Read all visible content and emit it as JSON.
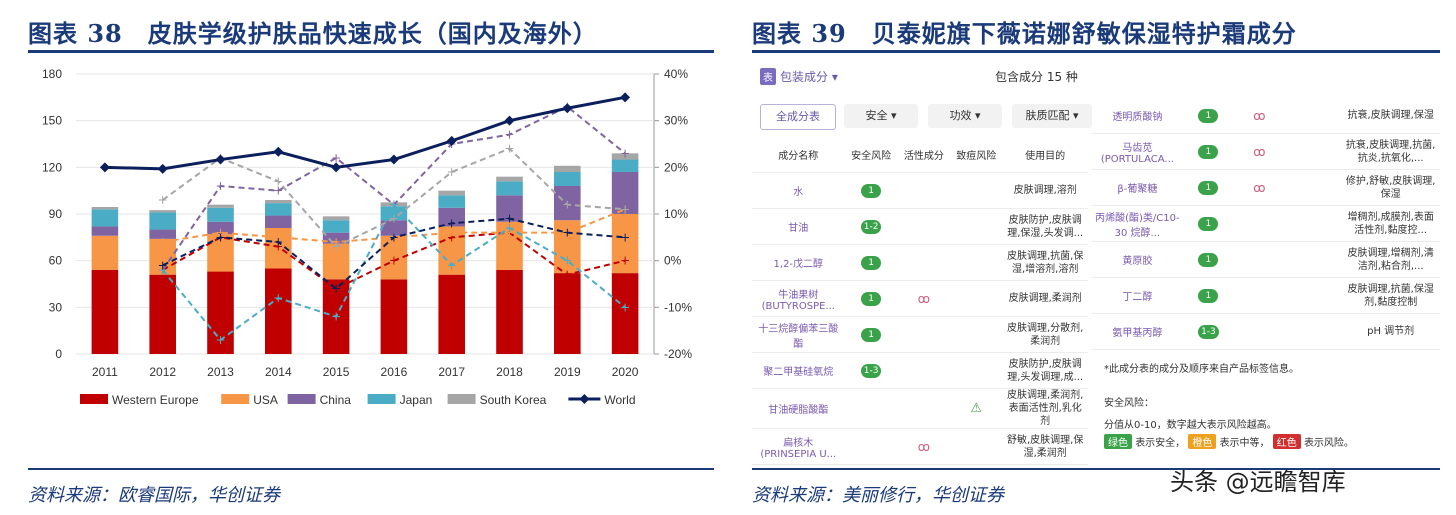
{
  "left": {
    "title": "图表 38　皮肤学级护肤品快速成长（国内及海外）",
    "source": "资料来源：欧睿国际，华创证券"
  },
  "right": {
    "title": "图表 39　贝泰妮旗下薇诺娜舒敏保湿特护霜成分",
    "source": "资料来源：美丽修行，华创证券",
    "header": {
      "tag": "表",
      "label": "包装成分",
      "count": "包含成分 15 种"
    },
    "filters": [
      "全成分表",
      "安全 ▾",
      "功效 ▾",
      "肤质匹配 ▾"
    ],
    "columns": [
      "成分名称",
      "安全风险",
      "活性成分",
      "致痘风险",
      "使用目的"
    ],
    "rows_left": [
      {
        "name": "水",
        "risk": "1",
        "active": "",
        "acne": "",
        "purpose": "皮肤调理,溶剂"
      },
      {
        "name": "甘油",
        "risk": "1-2",
        "active": "",
        "acne": "",
        "purpose": "皮肤防护,皮肤调理,保湿,头发调..."
      },
      {
        "name": "1,2-戊二醇",
        "risk": "1",
        "active": "",
        "acne": "",
        "purpose": "皮肤调理,抗菌,保湿,增溶剂,溶剂"
      },
      {
        "name": "牛油果树 (BUTYROSPE...",
        "risk": "1",
        "active": "bio",
        "acne": "",
        "purpose": "皮肤调理,柔润剂"
      },
      {
        "name": "十三烷醇偏苯三酸酯",
        "risk": "1",
        "active": "",
        "acne": "",
        "purpose": "皮肤调理,分散剂,柔润剂"
      },
      {
        "name": "聚二甲基硅氧烷",
        "risk": "1-3",
        "active": "",
        "acne": "",
        "purpose": "皮肤防护,皮肤调理,头发调理,成..."
      },
      {
        "name": "甘油硬脂酸酯",
        "risk": "",
        "active": "",
        "acne": "warn",
        "purpose": "皮肤调理,柔润剂,表面活性剂,乳化剂"
      },
      {
        "name": "扁核木 (PRINSEPIA U...",
        "risk": "",
        "active": "bio",
        "acne": "",
        "purpose": "舒敏,皮肤调理,保湿,柔润剂"
      }
    ],
    "rows_right": [
      {
        "name": "透明质酸钠",
        "risk": "1",
        "active": "bio",
        "purpose": "抗衰,皮肤调理,保湿"
      },
      {
        "name": "马齿苋 (PORTULACA...",
        "risk": "1",
        "active": "bio",
        "purpose": "抗衰,皮肤调理,抗菌,抗炎,抗氧化,..."
      },
      {
        "name": "β-葡聚糖",
        "risk": "1",
        "active": "bio",
        "purpose": "修护,舒敏,皮肤调理,保湿"
      },
      {
        "name": "丙烯酸(酯)类/C10-30 烷醇...",
        "risk": "1",
        "active": "",
        "purpose": "增稠剂,成膜剂,表面活性剂,黏度控..."
      },
      {
        "name": "黄原胶",
        "risk": "1",
        "active": "",
        "purpose": "皮肤调理,增稠剂,清洁剂,粘合剂,..."
      },
      {
        "name": "丁二醇",
        "risk": "1",
        "active": "",
        "purpose": "皮肤调理,抗菌,保湿剂,黏度控制"
      },
      {
        "name": "氨甲基丙醇",
        "risk": "1-3",
        "active": "",
        "purpose": "pH 调节剂"
      }
    ],
    "notes": {
      "line1": "*此成分表的成分及顺序来自产品标签信息。",
      "line2": "安全风险：",
      "line3": "分值从0-10，数字越大表示风险越高。",
      "green": "绿色",
      "green_txt": "表示安全，",
      "orange": "橙色",
      "orange_txt": "表示中等，",
      "red": "红色",
      "red_txt": "表示风险。"
    },
    "watermark": "头条 @远瞻智库"
  },
  "chart_data": {
    "type": "bar",
    "categories": [
      "2011",
      "2012",
      "2013",
      "2014",
      "2015",
      "2016",
      "2017",
      "2018",
      "2019",
      "2020"
    ],
    "ylim": [
      0,
      180
    ],
    "yticks": [
      0,
      30,
      60,
      90,
      120,
      150,
      180
    ],
    "y2lim": [
      -20,
      40
    ],
    "y2ticks": [
      "-20%",
      "-10%",
      "0%",
      "10%",
      "20%",
      "30%",
      "40%"
    ],
    "stacked_series": [
      {
        "name": "Western Europe",
        "color": "#c00000",
        "values": [
          54,
          51,
          53,
          55,
          48,
          48,
          51,
          54,
          52,
          52
        ]
      },
      {
        "name": "USA",
        "color": "#f79646",
        "values": [
          22,
          23,
          24,
          26,
          23,
          28,
          31,
          31,
          34,
          38
        ]
      },
      {
        "name": "China",
        "color": "#8064a2",
        "values": [
          6,
          6,
          8,
          8,
          7,
          10,
          12,
          17,
          22,
          27
        ]
      },
      {
        "name": "Japan",
        "color": "#4bacc6",
        "values": [
          11,
          11,
          9,
          8,
          8,
          9,
          8,
          9,
          9,
          8
        ]
      },
      {
        "name": "South Korea",
        "color": "#a6a6a6",
        "values": [
          1.5,
          1.5,
          2,
          2,
          2.5,
          2.5,
          3,
          3,
          4,
          4
        ]
      }
    ],
    "line_series": [
      {
        "name": "World",
        "color": "#0b1f5c",
        "values": [
          120,
          119,
          125,
          130,
          120,
          125,
          137,
          150,
          158,
          165
        ]
      }
    ],
    "growth_series": [
      {
        "name": "Western Europe",
        "color": "#c00000",
        "pct": [
          null,
          -2,
          5,
          3,
          -6,
          0,
          5,
          6,
          -3,
          0
        ]
      },
      {
        "name": "USA",
        "color": "#f79646",
        "pct": [
          null,
          4,
          6,
          5,
          4,
          5,
          6,
          6,
          6,
          11
        ]
      },
      {
        "name": "China",
        "color": "#8064a2",
        "pct": [
          null,
          -2,
          16,
          15,
          22,
          12,
          25,
          27,
          33,
          23
        ]
      },
      {
        "name": "Japan",
        "color": "#4bacc6",
        "pct": [
          null,
          -2,
          -17,
          -8,
          -12,
          12,
          -1,
          7,
          0,
          -10
        ]
      },
      {
        "name": "South Korea",
        "color": "#a6a6a6",
        "pct": [
          null,
          13,
          22,
          17,
          3,
          9,
          19,
          24,
          12,
          11
        ]
      },
      {
        "name": "World",
        "color": "#0b1f5c",
        "pct": [
          null,
          -1,
          5,
          4,
          -6,
          5,
          8,
          9,
          6,
          5
        ]
      }
    ]
  }
}
